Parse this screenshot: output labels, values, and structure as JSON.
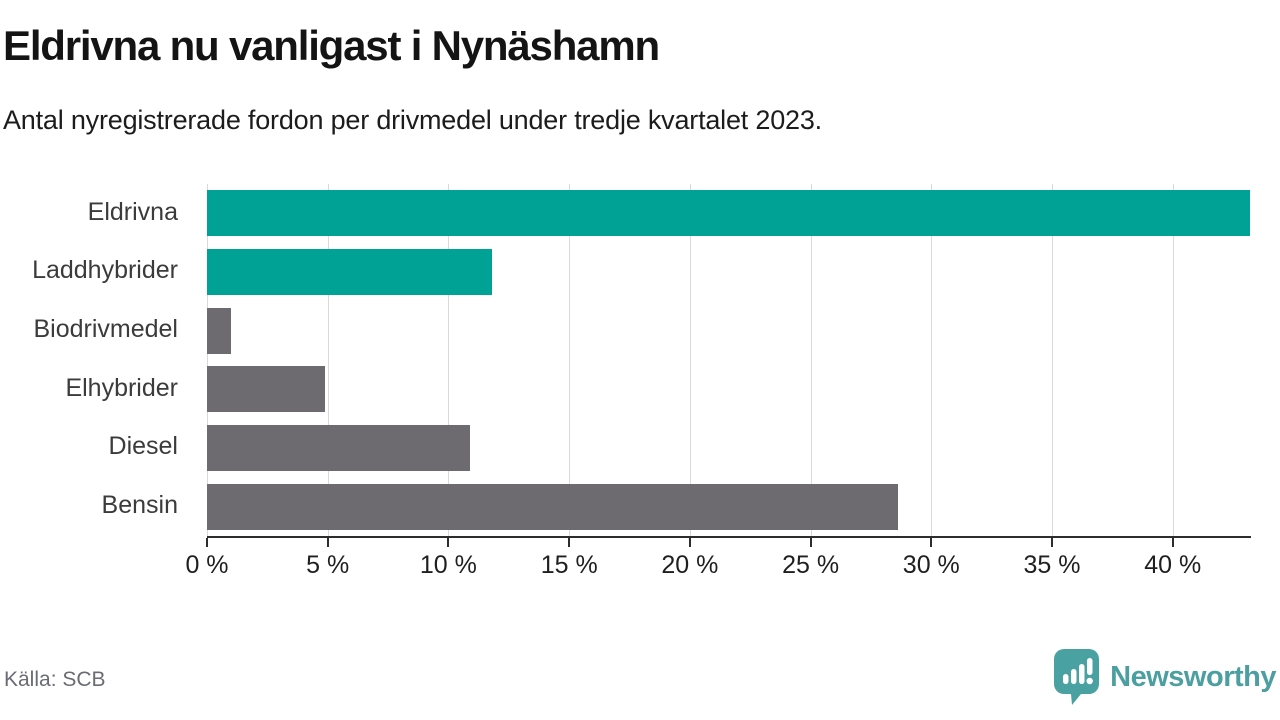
{
  "chart_data": {
    "type": "bar",
    "orientation": "horizontal",
    "title": "Eldrivna nu vanligast i Nynäshamn",
    "subtitle": "Antal nyregistrerade fordon per drivmedel under tredje kvartalet 2023.",
    "categories": [
      "Eldrivna",
      "Laddhybrider",
      "Biodrivmedel",
      "Elhybrider",
      "Diesel",
      "Bensin"
    ],
    "values": [
      43.2,
      11.8,
      1.0,
      4.9,
      10.9,
      28.6
    ],
    "bar_colors": [
      "#00a296",
      "#00a296",
      "#6e6b70",
      "#6e6b70",
      "#6e6b70",
      "#6e6b70"
    ],
    "xlim": [
      0,
      43.2
    ],
    "x_ticks": [
      0,
      5,
      10,
      15,
      20,
      25,
      30,
      35,
      40
    ],
    "tick_suffix": " %",
    "xlabel": "",
    "ylabel": "",
    "grid": "vertical",
    "legend": "none",
    "accent_color": "#00a296",
    "neutral_color": "#6e6b70",
    "gridline_color": "#d9d9d9"
  },
  "footer": {
    "source": "Källa: SCB",
    "brand": "Newsworthy",
    "brand_color": "#4c9fa0"
  }
}
